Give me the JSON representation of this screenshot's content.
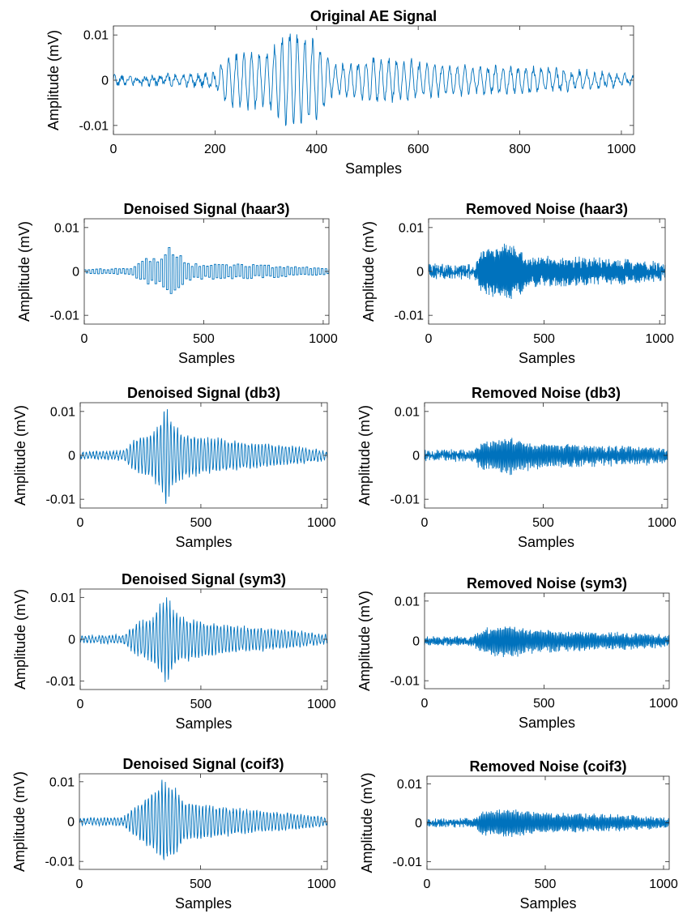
{
  "figure": {
    "background": "#ffffff",
    "line_color": "#0072BD"
  },
  "chart_data": [
    {
      "id": "original",
      "type": "line",
      "title": "Original AE Signal",
      "xlabel": "Samples",
      "ylabel": "Amplitude (mV)",
      "xlim": [
        0,
        1024
      ],
      "ylim": [
        -0.012,
        0.012
      ],
      "xticks": [
        0,
        200,
        400,
        600,
        800,
        1000
      ],
      "xtick_labels": [
        "0",
        "200",
        "400",
        "600",
        "800",
        "1000"
      ],
      "yticks": [
        0.01,
        0,
        -0.01
      ],
      "ytick_labels": [
        "0.01",
        "0",
        "-0.01"
      ],
      "grid": false,
      "series": [
        {
          "envelope": [
            [
              0,
              0.0008
            ],
            [
              150,
              0.001
            ],
            [
              200,
              0.0015
            ],
            [
              230,
              0.006
            ],
            [
              270,
              0.0065
            ],
            [
              300,
              0.006
            ],
            [
              330,
              0.0095
            ],
            [
              350,
              0.0115
            ],
            [
              370,
              0.0105
            ],
            [
              400,
              0.0095
            ],
            [
              430,
              0.0035
            ],
            [
              480,
              0.004
            ],
            [
              510,
              0.0055
            ],
            [
              560,
              0.0045
            ],
            [
              620,
              0.004
            ],
            [
              680,
              0.0035
            ],
            [
              740,
              0.003
            ],
            [
              800,
              0.0032
            ],
            [
              900,
              0.002
            ],
            [
              1024,
              0.0012
            ]
          ],
          "period": 15,
          "noise": 0.0008,
          "seed": 1
        }
      ]
    },
    {
      "id": "den-haar3",
      "type": "line",
      "title": "Denoised Signal (haar3)",
      "xlabel": "Samples",
      "ylabel": "Amplitude (mV)",
      "xlim": [
        0,
        1024
      ],
      "ylim": [
        -0.012,
        0.012
      ],
      "xticks": [
        0,
        500,
        1000
      ],
      "xtick_labels": [
        "0",
        "500",
        "1000"
      ],
      "yticks": [
        0.01,
        0,
        -0.01
      ],
      "ytick_labels": [
        "0.01",
        "0",
        "-0.01"
      ],
      "grid": false,
      "series": [
        {
          "envelope": [
            [
              0,
              0.0006
            ],
            [
              180,
              0.0008
            ],
            [
              220,
              0.002
            ],
            [
              260,
              0.0035
            ],
            [
              320,
              0.004
            ],
            [
              350,
              0.0075
            ],
            [
              370,
              0.006
            ],
            [
              400,
              0.004
            ],
            [
              450,
              0.002
            ],
            [
              550,
              0.002
            ],
            [
              700,
              0.0018
            ],
            [
              900,
              0.0012
            ],
            [
              1024,
              0.0008
            ]
          ],
          "period": 16,
          "noise": 0.0001,
          "seed": 2,
          "step": 8
        }
      ]
    },
    {
      "id": "noise-haar3",
      "type": "line",
      "title": "Removed Noise (haar3)",
      "xlabel": "Samples",
      "ylabel": "Amplitude (mV)",
      "xlim": [
        0,
        1024
      ],
      "ylim": [
        -0.012,
        0.012
      ],
      "xticks": [
        0,
        500,
        1000
      ],
      "xtick_labels": [
        "0",
        "500",
        "1000"
      ],
      "yticks": [
        0.01,
        0,
        -0.01
      ],
      "ytick_labels": [
        "0.01",
        "0",
        "-0.01"
      ],
      "grid": false,
      "series": [
        {
          "envelope": [
            [
              0,
              0.0008
            ],
            [
              200,
              0.001
            ],
            [
              230,
              0.005
            ],
            [
              300,
              0.006
            ],
            [
              350,
              0.007
            ],
            [
              400,
              0.005
            ],
            [
              450,
              0.003
            ],
            [
              550,
              0.003
            ],
            [
              700,
              0.0025
            ],
            [
              850,
              0.0022
            ],
            [
              1024,
              0.0012
            ]
          ],
          "period": 4,
          "noise": 0.0012,
          "seed": 3
        }
      ]
    },
    {
      "id": "den-db3",
      "type": "line",
      "title": "Denoised Signal (db3)",
      "xlabel": "Samples",
      "ylabel": "Amplitude (mV)",
      "xlim": [
        0,
        1024
      ],
      "ylim": [
        -0.012,
        0.012
      ],
      "xticks": [
        0,
        500,
        1000
      ],
      "xtick_labels": [
        "0",
        "500",
        "1000"
      ],
      "yticks": [
        0.01,
        0,
        -0.01
      ],
      "ytick_labels": [
        "0.01",
        "0",
        "-0.01"
      ],
      "grid": false,
      "series": [
        {
          "envelope": [
            [
              0,
              0.0008
            ],
            [
              180,
              0.001
            ],
            [
              230,
              0.004
            ],
            [
              300,
              0.0055
            ],
            [
              340,
              0.009
            ],
            [
              355,
              0.012
            ],
            [
              380,
              0.008
            ],
            [
              420,
              0.0055
            ],
            [
              500,
              0.0045
            ],
            [
              600,
              0.0038
            ],
            [
              700,
              0.003
            ],
            [
              800,
              0.0025
            ],
            [
              900,
              0.002
            ],
            [
              1024,
              0.001
            ]
          ],
          "period": 14,
          "noise": 0.0003,
          "seed": 4
        }
      ]
    },
    {
      "id": "noise-db3",
      "type": "line",
      "title": "Removed Noise (db3)",
      "xlabel": "Samples",
      "ylabel": "Amplitude (mV)",
      "xlim": [
        0,
        1024
      ],
      "ylim": [
        -0.012,
        0.012
      ],
      "xticks": [
        0,
        500,
        1000
      ],
      "xtick_labels": [
        "0",
        "500",
        "1000"
      ],
      "yticks": [
        0.01,
        0,
        -0.01
      ],
      "ytick_labels": [
        "0.01",
        "0",
        "-0.01"
      ],
      "grid": false,
      "series": [
        {
          "envelope": [
            [
              0,
              0.0007
            ],
            [
              200,
              0.0009
            ],
            [
              240,
              0.003
            ],
            [
              300,
              0.0035
            ],
            [
              360,
              0.0042
            ],
            [
              420,
              0.003
            ],
            [
              500,
              0.0025
            ],
            [
              700,
              0.002
            ],
            [
              900,
              0.0018
            ],
            [
              1024,
              0.0012
            ]
          ],
          "period": 5,
          "noise": 0.0008,
          "seed": 5
        }
      ]
    },
    {
      "id": "den-sym3",
      "type": "line",
      "title": "Denoised Signal (sym3)",
      "xlabel": "Samples",
      "ylabel": "Amplitude (mV)",
      "xlim": [
        0,
        1024
      ],
      "ylim": [
        -0.012,
        0.012
      ],
      "xticks": [
        0,
        500,
        1000
      ],
      "xtick_labels": [
        "0",
        "500",
        "1000"
      ],
      "yticks": [
        0.01,
        0,
        -0.01
      ],
      "ytick_labels": [
        "0.01",
        "0",
        "-0.01"
      ],
      "grid": false,
      "series": [
        {
          "envelope": [
            [
              0,
              0.0008
            ],
            [
              180,
              0.001
            ],
            [
              230,
              0.004
            ],
            [
              300,
              0.0055
            ],
            [
              340,
              0.0095
            ],
            [
              355,
              0.0115
            ],
            [
              380,
              0.008
            ],
            [
              420,
              0.0055
            ],
            [
              500,
              0.0045
            ],
            [
              600,
              0.0035
            ],
            [
              700,
              0.003
            ],
            [
              800,
              0.0025
            ],
            [
              900,
              0.002
            ],
            [
              1024,
              0.001
            ]
          ],
          "period": 14,
          "noise": 0.0003,
          "seed": 6
        }
      ]
    },
    {
      "id": "noise-sym3",
      "type": "line",
      "title": "Removed Noise (sym3)",
      "xlabel": "Samples",
      "ylabel": "Amplitude (mV)",
      "xlim": [
        0,
        1024
      ],
      "ylim": [
        -0.012,
        0.012
      ],
      "xticks": [
        0,
        500,
        1000
      ],
      "xtick_labels": [
        "0",
        "500",
        "1000"
      ],
      "yticks": [
        0.01,
        0,
        -0.01
      ],
      "ytick_labels": [
        "0.01",
        "0",
        "-0.01"
      ],
      "grid": false,
      "series": [
        {
          "envelope": [
            [
              0,
              0.0006
            ],
            [
              200,
              0.0008
            ],
            [
              240,
              0.003
            ],
            [
              300,
              0.0035
            ],
            [
              360,
              0.004
            ],
            [
              420,
              0.003
            ],
            [
              500,
              0.0025
            ],
            [
              700,
              0.002
            ],
            [
              900,
              0.0017
            ],
            [
              1024,
              0.0011
            ]
          ],
          "period": 5,
          "noise": 0.0007,
          "seed": 7
        }
      ]
    },
    {
      "id": "den-coif3",
      "type": "line",
      "title": "Denoised Signal (coif3)",
      "xlabel": "Samples",
      "ylabel": "Amplitude (mV)",
      "xlim": [
        0,
        1024
      ],
      "ylim": [
        -0.012,
        0.012
      ],
      "xticks": [
        0,
        500,
        1000
      ],
      "xtick_labels": [
        "0",
        "500",
        "1000"
      ],
      "yticks": [
        0.01,
        0,
        -0.01
      ],
      "ytick_labels": [
        "0.01",
        "0",
        "-0.01"
      ],
      "grid": false,
      "series": [
        {
          "envelope": [
            [
              0,
              0.0008
            ],
            [
              180,
              0.001
            ],
            [
              230,
              0.004
            ],
            [
              290,
              0.007
            ],
            [
              330,
              0.009
            ],
            [
              345,
              0.011
            ],
            [
              370,
              0.0095
            ],
            [
              400,
              0.009
            ],
            [
              430,
              0.005
            ],
            [
              500,
              0.0045
            ],
            [
              600,
              0.0038
            ],
            [
              700,
              0.003
            ],
            [
              800,
              0.0025
            ],
            [
              900,
              0.002
            ],
            [
              1024,
              0.001
            ]
          ],
          "period": 14,
          "noise": 0.0003,
          "seed": 8
        }
      ]
    },
    {
      "id": "noise-coif3",
      "type": "line",
      "title": "Removed Noise (coif3)",
      "xlabel": "Samples",
      "ylabel": "Amplitude (mV)",
      "xlim": [
        0,
        1024
      ],
      "ylim": [
        -0.012,
        0.012
      ],
      "xticks": [
        0,
        500,
        1000
      ],
      "xtick_labels": [
        "0",
        "500",
        "1000"
      ],
      "yticks": [
        0.01,
        0,
        -0.01
      ],
      "ytick_labels": [
        "0.01",
        "0",
        "-0.01"
      ],
      "grid": false,
      "series": [
        {
          "envelope": [
            [
              0,
              0.0006
            ],
            [
              200,
              0.0008
            ],
            [
              240,
              0.003
            ],
            [
              300,
              0.0033
            ],
            [
              360,
              0.0035
            ],
            [
              420,
              0.0028
            ],
            [
              500,
              0.0024
            ],
            [
              700,
              0.002
            ],
            [
              900,
              0.0016
            ],
            [
              1024,
              0.001
            ]
          ],
          "period": 5,
          "noise": 0.0006,
          "seed": 9
        }
      ]
    }
  ]
}
